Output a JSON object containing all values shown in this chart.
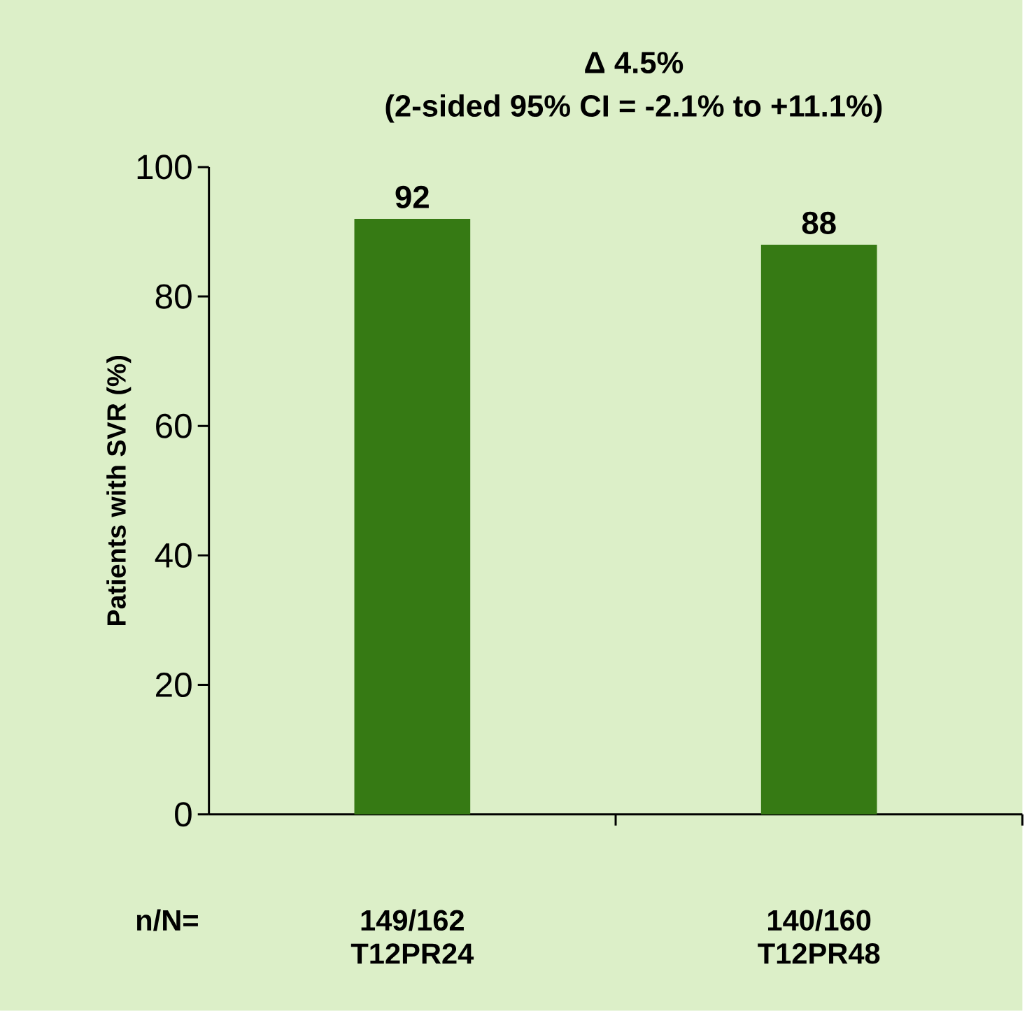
{
  "chart_data": {
    "type": "bar",
    "title": "Δ 4.5%",
    "subtitle": "(2-sided 95% CI = -2.1% to +11.1%)",
    "ylabel": "Patients with SVR (%)",
    "categories": [
      "T12PR24",
      "T12PR48"
    ],
    "values": [
      92,
      88
    ],
    "color": "#367a14",
    "data_labels": true,
    "ylim": [
      0,
      100
    ],
    "yticks": [
      0,
      20,
      40,
      60,
      80,
      100
    ],
    "grid": false,
    "annotations": [
      "n/N=",
      "149/162",
      "140/160"
    ]
  }
}
